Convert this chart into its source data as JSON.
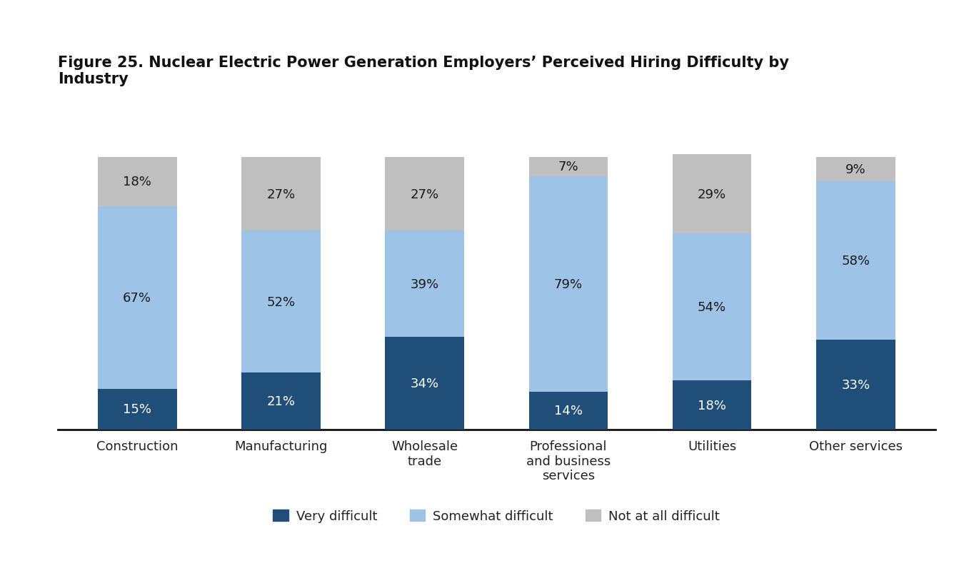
{
  "title_line1": "Figure 25. Nuclear Electric Power Generation Employers’ Perceived Hiring Difficulty by",
  "title_line2": "Industry",
  "categories": [
    "Construction",
    "Manufacturing",
    "Wholesale\ntrade",
    "Professional\nand business\nservices",
    "Utilities",
    "Other services"
  ],
  "very_difficult": [
    15,
    21,
    34,
    14,
    18,
    33
  ],
  "somewhat_difficult": [
    67,
    52,
    39,
    79,
    54,
    58
  ],
  "not_at_all_difficult": [
    18,
    27,
    27,
    7,
    29,
    9
  ],
  "color_very_difficult": "#1f4e79",
  "color_somewhat_difficult": "#9dc3e6",
  "color_not_at_all": "#bfbfbf",
  "legend_labels": [
    "Very difficult",
    "Somewhat difficult",
    "Not at all difficult"
  ],
  "background_color": "#ffffff",
  "title_fontsize": 15,
  "label_fontsize": 13,
  "tick_fontsize": 13,
  "annotation_fontsize": 13,
  "annotation_color_dark": "#1a1a1a",
  "annotation_color_white": "#ffffff",
  "bar_width": 0.55
}
